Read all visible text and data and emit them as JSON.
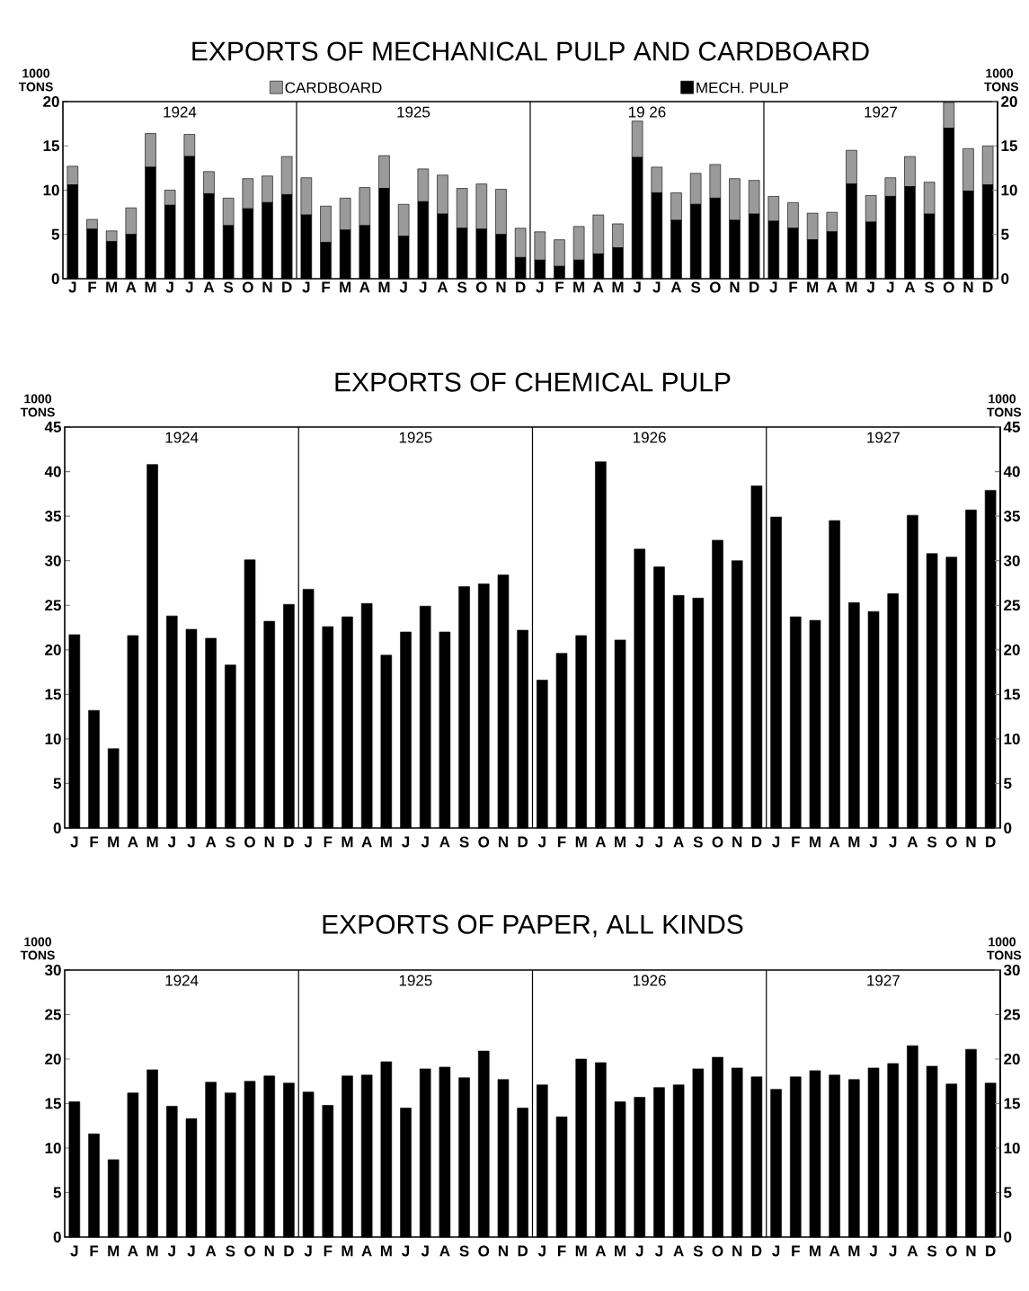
{
  "chart_data": [
    {
      "type": "bar",
      "title": "EXPORTS OF MECHANICAL PULP AND CARDBOARD",
      "stacked": true,
      "legend": "top",
      "ylabel": "1000 TONS",
      "y2label": "1000 TONS",
      "categories": [
        "J",
        "F",
        "M",
        "A",
        "M",
        "J",
        "J",
        "A",
        "S",
        "O",
        "N",
        "D",
        "J",
        "F",
        "M",
        "A",
        "M",
        "J",
        "J",
        "A",
        "S",
        "O",
        "N",
        "D",
        "J",
        "F",
        "M",
        "A",
        "M",
        "J",
        "J",
        "A",
        "S",
        "O",
        "N",
        "D",
        "J",
        "F",
        "M",
        "A",
        "M",
        "J",
        "J",
        "A",
        "S",
        "O",
        "N",
        "D"
      ],
      "series": [
        {
          "name": "MECH. PULP",
          "color": "#000000",
          "values": [
            10.6,
            5.6,
            4.2,
            5.0,
            12.6,
            8.3,
            13.8,
            9.6,
            6.0,
            7.9,
            8.6,
            9.5,
            7.2,
            4.1,
            5.5,
            6.0,
            10.2,
            4.8,
            8.7,
            7.3,
            5.7,
            5.6,
            5.0,
            2.4,
            2.1,
            1.4,
            2.1,
            2.8,
            3.5,
            13.7,
            9.7,
            6.6,
            8.4,
            9.1,
            6.6,
            7.3,
            6.5,
            5.7,
            4.4,
            5.3,
            10.7,
            6.4,
            9.3,
            10.4,
            7.3,
            17.0,
            9.9,
            10.6
          ]
        },
        {
          "name": "CARDBOARD",
          "color": "#9a9a9a",
          "values": [
            2.1,
            1.1,
            1.2,
            3.0,
            3.8,
            1.7,
            2.5,
            2.5,
            3.1,
            3.4,
            3.0,
            4.3,
            4.2,
            4.1,
            3.6,
            4.3,
            3.7,
            3.6,
            3.7,
            4.4,
            4.5,
            5.1,
            5.1,
            3.3,
            3.2,
            3.0,
            3.8,
            4.4,
            2.7,
            4.1,
            2.9,
            3.1,
            3.5,
            3.8,
            4.7,
            3.8,
            2.8,
            2.9,
            3.0,
            2.2,
            3.8,
            3.0,
            2.1,
            3.4,
            3.6,
            2.9,
            4.8,
            4.4
          ]
        }
      ],
      "ylim": [
        0,
        20
      ],
      "yticks": [
        0,
        5,
        10,
        15,
        20
      ],
      "y2lim": [
        0,
        20
      ],
      "y2ticks": [
        0,
        5,
        10,
        15,
        20
      ],
      "annotations": [
        "1924",
        "1925",
        "19 26",
        "1927"
      ]
    },
    {
      "type": "bar",
      "title": "EXPORTS OF CHEMICAL PULP",
      "ylabel": "1000 TONS",
      "y2label": "1000 TONS",
      "color": "#000000",
      "categories": [
        "J",
        "F",
        "M",
        "A",
        "M",
        "J",
        "J",
        "A",
        "S",
        "O",
        "N",
        "D",
        "J",
        "F",
        "M",
        "A",
        "M",
        "J",
        "J",
        "A",
        "S",
        "O",
        "N",
        "D",
        "J",
        "F",
        "M",
        "A",
        "M",
        "J",
        "J",
        "A",
        "S",
        "O",
        "N",
        "D",
        "J",
        "F",
        "M",
        "A",
        "M",
        "J",
        "J",
        "A",
        "S",
        "O",
        "N",
        "D"
      ],
      "values": [
        21.7,
        13.2,
        8.9,
        21.6,
        40.8,
        23.8,
        22.3,
        21.3,
        18.3,
        30.1,
        23.2,
        25.1,
        26.8,
        22.6,
        23.7,
        25.2,
        19.4,
        22.0,
        24.9,
        22.0,
        27.1,
        27.4,
        28.4,
        22.2,
        16.6,
        19.6,
        21.6,
        41.1,
        21.1,
        31.3,
        29.3,
        26.1,
        25.8,
        32.3,
        30.0,
        38.4,
        34.9,
        23.7,
        23.3,
        34.5,
        25.3,
        24.3,
        26.3,
        35.1,
        30.8,
        30.4,
        35.7,
        37.9
      ],
      "ylim": [
        0,
        45
      ],
      "yticks": [
        0,
        5,
        10,
        15,
        20,
        25,
        30,
        35,
        40,
        45
      ],
      "y2lim": [
        0,
        45
      ],
      "y2ticks": [
        0,
        5,
        10,
        15,
        20,
        25,
        30,
        35,
        40,
        45
      ],
      "annotations": [
        "1924",
        "1925",
        "1926",
        "1927"
      ]
    },
    {
      "type": "bar",
      "title": "EXPORTS OF PAPER, ALL KINDS",
      "ylabel": "1000 TONS",
      "y2label": "1000 TONS",
      "color": "#000000",
      "categories": [
        "J",
        "F",
        "M",
        "A",
        "M",
        "J",
        "J",
        "A",
        "S",
        "O",
        "N",
        "D",
        "J",
        "F",
        "M",
        "A",
        "M",
        "J",
        "J",
        "A",
        "S",
        "O",
        "N",
        "D",
        "J",
        "F",
        "M",
        "A",
        "M",
        "J",
        "J",
        "A",
        "S",
        "O",
        "N",
        "D",
        "J",
        "F",
        "M",
        "A",
        "M",
        "J",
        "J",
        "A",
        "S",
        "O",
        "N",
        "D"
      ],
      "values": [
        15.2,
        11.6,
        8.7,
        16.2,
        18.8,
        14.7,
        13.3,
        17.4,
        16.2,
        17.5,
        18.1,
        17.3,
        16.3,
        14.8,
        18.1,
        18.2,
        19.7,
        14.5,
        18.9,
        19.1,
        17.9,
        20.9,
        17.7,
        14.5,
        17.1,
        13.5,
        20.0,
        19.6,
        15.2,
        15.7,
        16.8,
        17.1,
        18.9,
        20.2,
        19.0,
        18.0,
        16.6,
        18.0,
        18.7,
        18.2,
        17.7,
        19.0,
        19.5,
        21.5,
        19.2,
        17.2,
        21.1,
        17.3
      ],
      "ylim": [
        0,
        30
      ],
      "yticks": [
        0,
        5,
        10,
        15,
        20,
        25,
        30
      ],
      "y2lim": [
        0,
        30
      ],
      "y2ticks": [
        0,
        5,
        10,
        15,
        20,
        25,
        30
      ],
      "annotations": [
        "1924",
        "1925",
        "1926",
        "1927"
      ]
    }
  ]
}
